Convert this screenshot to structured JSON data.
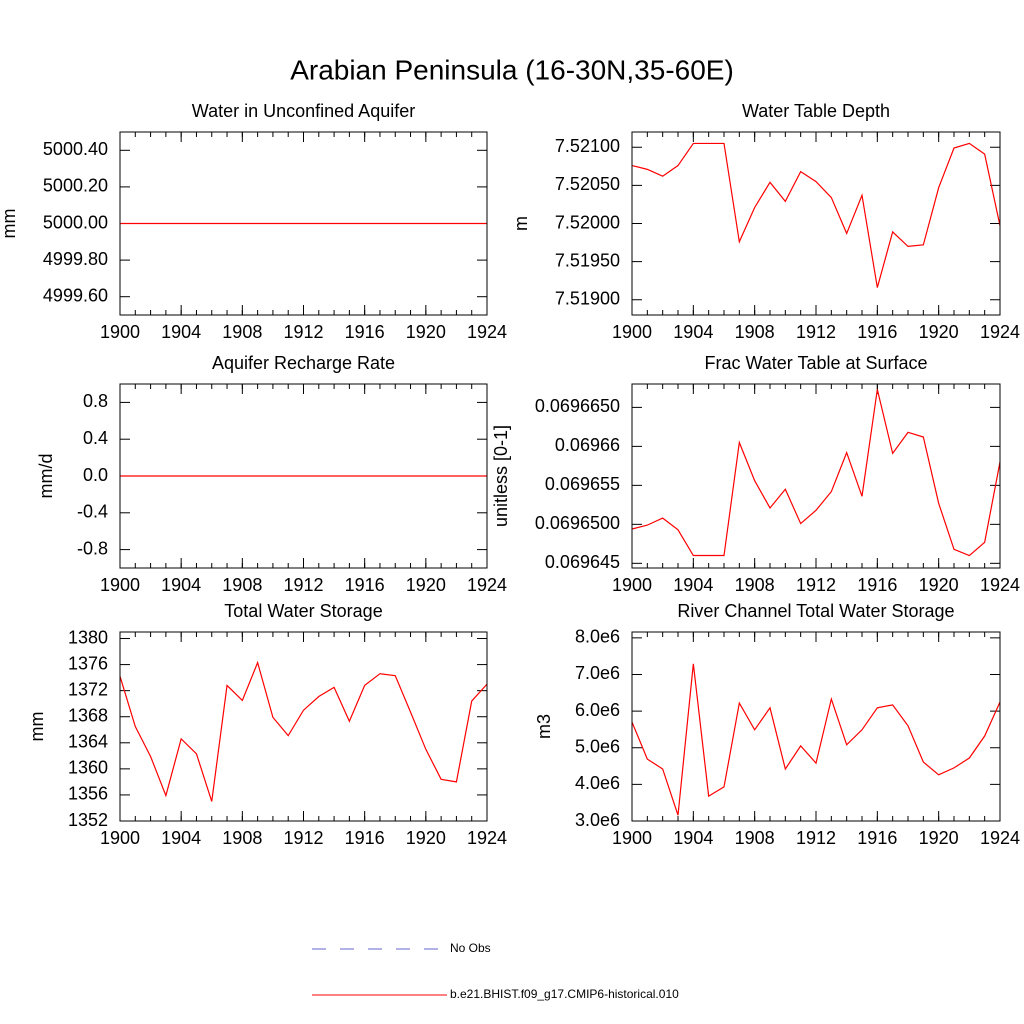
{
  "title": "Arabian Peninsula (16-30N,35-60E)",
  "legend": {
    "items": [
      {
        "name": "No Obs",
        "color": "#6666cc",
        "dashed": true
      },
      {
        "name": "b.e21.BHIST.f09_g17.CMIP6-historical.010",
        "color": "#ff0000",
        "dashed": false
      }
    ]
  },
  "chart_data": [
    {
      "type": "line",
      "title": "Water in Unconfined Aquifer",
      "y_label": "mm",
      "x": [
        1900,
        1901,
        1902,
        1903,
        1904,
        1905,
        1906,
        1907,
        1908,
        1909,
        1910,
        1911,
        1912,
        1913,
        1914,
        1915,
        1916,
        1917,
        1918,
        1919,
        1920,
        1921,
        1922,
        1923,
        1924
      ],
      "xlim": [
        1900,
        1924
      ],
      "xticks": [
        1900,
        1904,
        1908,
        1912,
        1916,
        1920,
        1924
      ],
      "ylim": [
        4999.5,
        5000.5
      ],
      "yticks": [
        {
          "value": 5000.4,
          "label": "5000.40"
        },
        {
          "value": 5000.2,
          "label": "5000.20"
        },
        {
          "value": 5000,
          "label": "5000.00"
        },
        {
          "value": 4999.8,
          "label": "4999.80"
        },
        {
          "value": 4999.6,
          "label": "4999.60"
        }
      ],
      "series": [
        {
          "color": "#ff0000",
          "values": [
            5000,
            5000,
            5000,
            5000,
            5000,
            5000,
            5000,
            5000,
            5000,
            5000,
            5000,
            5000,
            5000,
            5000,
            5000,
            5000,
            5000,
            5000,
            5000,
            5000,
            5000,
            5000,
            5000,
            5000,
            5000
          ]
        }
      ]
    },
    {
      "type": "line",
      "title": "Water Table Depth",
      "y_label": "m",
      "x": [
        1900,
        1901,
        1902,
        1903,
        1904,
        1905,
        1906,
        1907,
        1908,
        1909,
        1910,
        1911,
        1912,
        1913,
        1914,
        1915,
        1916,
        1917,
        1918,
        1919,
        1920,
        1921,
        1922,
        1923,
        1924
      ],
      "xlim": [
        1900,
        1924
      ],
      "xticks": [
        1900,
        1904,
        1908,
        1912,
        1916,
        1920,
        1924
      ],
      "ylim": [
        7.5188,
        7.5212
      ],
      "yticks": [
        {
          "value": 7.521,
          "label": "7.52100"
        },
        {
          "value": 7.5205,
          "label": "7.52050"
        },
        {
          "value": 7.52,
          "label": "7.52000"
        },
        {
          "value": 7.5195,
          "label": "7.51950"
        },
        {
          "value": 7.519,
          "label": "7.51900"
        }
      ],
      "series": [
        {
          "color": "#ff0000",
          "values": [
            7.52076,
            7.52071,
            7.52062,
            7.52076,
            7.52105,
            7.52105,
            7.52105,
            7.51976,
            7.52021,
            7.52054,
            7.52029,
            7.52068,
            7.52055,
            7.52034,
            7.51987,
            7.52037,
            7.51916,
            7.51989,
            7.5197,
            7.51972,
            7.52047,
            7.52099,
            7.52105,
            7.52091,
            7.51997
          ]
        }
      ]
    },
    {
      "type": "line",
      "title": "Aquifer Recharge Rate",
      "y_label": "mm/d",
      "x": [
        1900,
        1901,
        1902,
        1903,
        1904,
        1905,
        1906,
        1907,
        1908,
        1909,
        1910,
        1911,
        1912,
        1913,
        1914,
        1915,
        1916,
        1917,
        1918,
        1919,
        1920,
        1921,
        1922,
        1923,
        1924
      ],
      "xlim": [
        1900,
        1924
      ],
      "xticks": [
        1900,
        1904,
        1908,
        1912,
        1916,
        1920,
        1924
      ],
      "ylim": [
        -1,
        1
      ],
      "yticks": [
        0.8,
        0.4,
        {
          "value": 0,
          "label": "0.0"
        },
        -0.4,
        -0.8
      ],
      "series": [
        {
          "color": "#ff0000",
          "values": [
            0,
            0,
            0,
            0,
            0,
            0,
            0,
            0,
            0,
            0,
            0,
            0,
            0,
            0,
            0,
            0,
            0,
            0,
            0,
            0,
            0,
            0,
            0,
            0,
            0
          ]
        }
      ]
    },
    {
      "type": "line",
      "title": "Frac Water Table at Surface",
      "y_label": "unitless [0-1]",
      "x": [
        1900,
        1901,
        1902,
        1903,
        1904,
        1905,
        1906,
        1907,
        1908,
        1909,
        1910,
        1911,
        1912,
        1913,
        1914,
        1915,
        1916,
        1917,
        1918,
        1919,
        1920,
        1921,
        1922,
        1923,
        1924
      ],
      "xlim": [
        1900,
        1924
      ],
      "xticks": [
        1900,
        1904,
        1908,
        1912,
        1916,
        1920,
        1924
      ],
      "ylim": [
        0.0696444,
        0.069668
      ],
      "yticks": [
        {
          "value": 0.069665,
          "label": "0.0696650"
        },
        0.06966,
        0.069655,
        {
          "value": 0.06965,
          "label": "0.0696500"
        },
        0.069645
      ],
      "series": [
        {
          "color": "#ff0000",
          "values": [
            0.0696494,
            0.0696499,
            0.0696508,
            0.0696493,
            0.069646,
            0.069646,
            0.069646,
            0.0696605,
            0.0696556,
            0.0696521,
            0.0696545,
            0.0696501,
            0.0696518,
            0.0696542,
            0.0696592,
            0.0696536,
            0.0696673,
            0.0696591,
            0.0696618,
            0.0696612,
            0.0696527,
            0.0696468,
            0.069646,
            0.0696477,
            0.069658
          ]
        }
      ]
    },
    {
      "type": "line",
      "title": "Total Water Storage",
      "y_label": "mm",
      "x": [
        1900,
        1901,
        1902,
        1903,
        1904,
        1905,
        1906,
        1907,
        1908,
        1909,
        1910,
        1911,
        1912,
        1913,
        1914,
        1915,
        1916,
        1917,
        1918,
        1919,
        1920,
        1921,
        1922,
        1923,
        1924
      ],
      "xlim": [
        1900,
        1924
      ],
      "xticks": [
        1900,
        1904,
        1908,
        1912,
        1916,
        1920,
        1924
      ],
      "ylim": [
        1352,
        1381
      ],
      "yticks": [
        1380,
        1376,
        1372,
        1368,
        1364,
        1360,
        1356,
        1352
      ],
      "series": [
        {
          "color": "#ff0000",
          "values": [
            1374.2,
            1366.5,
            1361.9,
            1355.9,
            1364.6,
            1362.3,
            1355,
            1372.8,
            1370.5,
            1376.3,
            1367.9,
            1365.1,
            1369,
            1371.1,
            1372.5,
            1367.3,
            1372.8,
            1374.6,
            1374.3,
            1368.7,
            1363,
            1358.4,
            1358,
            1370.4,
            1373
          ]
        }
      ]
    },
    {
      "type": "line",
      "title": "River Channel Total Water Storage",
      "y_label": "m3",
      "x": [
        1900,
        1901,
        1902,
        1903,
        1904,
        1905,
        1906,
        1907,
        1908,
        1909,
        1910,
        1911,
        1912,
        1913,
        1914,
        1915,
        1916,
        1917,
        1918,
        1919,
        1920,
        1921,
        1922,
        1923,
        1924
      ],
      "xlim": [
        1900,
        1924
      ],
      "xticks": [
        1900,
        1904,
        1908,
        1912,
        1916,
        1920,
        1924
      ],
      "ylim": [
        3000000,
        8160000
      ],
      "yticks": [
        {
          "value": 8000000,
          "label": "8.0e6"
        },
        {
          "value": 7000000,
          "label": "7.0e6"
        },
        {
          "value": 6000000,
          "label": "6.0e6"
        },
        {
          "value": 5000000,
          "label": "5.0e6"
        },
        {
          "value": 4000000,
          "label": "4.0e6"
        },
        {
          "value": 3000000,
          "label": "3.0e6"
        }
      ],
      "series": [
        {
          "color": "#ff0000",
          "values": [
            5700000,
            4690000,
            4420000,
            3160000,
            7290000,
            3680000,
            3930000,
            6220000,
            5490000,
            6090000,
            4420000,
            5050000,
            4580000,
            6330000,
            5080000,
            5490000,
            6090000,
            6170000,
            5600000,
            4610000,
            4260000,
            4450000,
            4720000,
            5320000,
            6250000
          ]
        }
      ]
    }
  ]
}
